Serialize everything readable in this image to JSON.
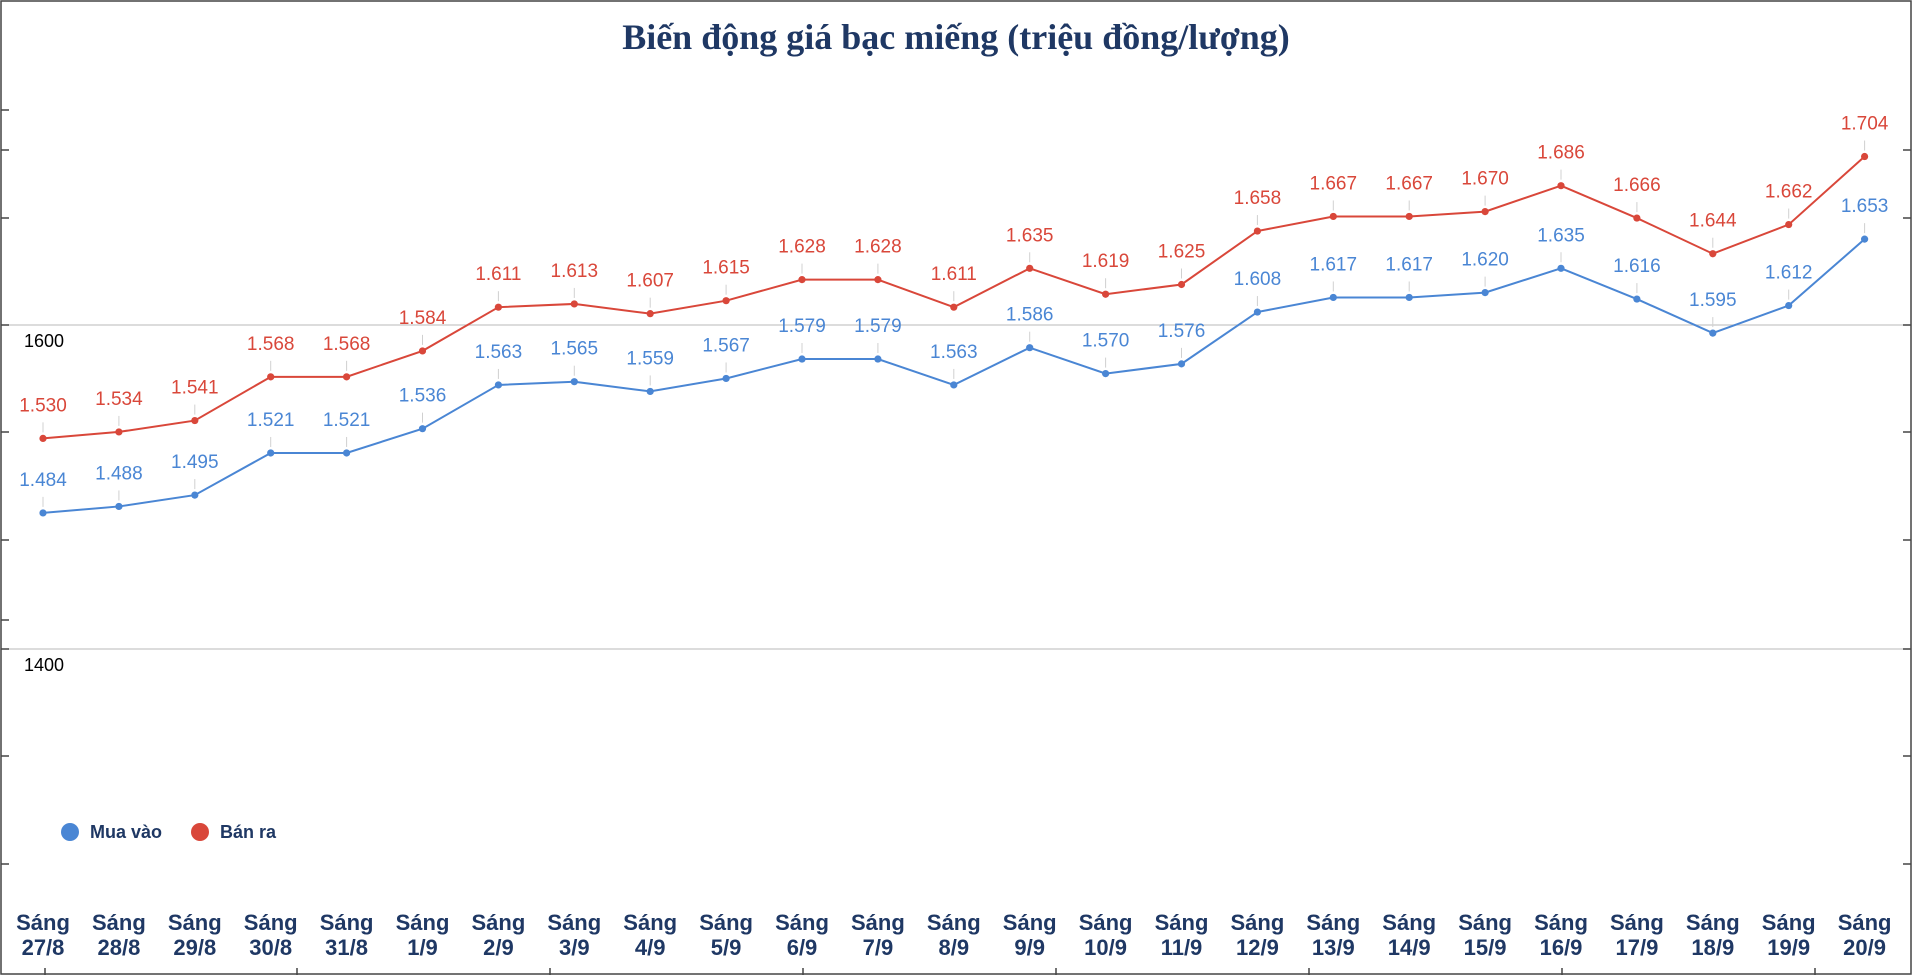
{
  "chart_data": {
    "type": "line",
    "title": "Biến động giá bạc miếng (triệu đồng/lượng)",
    "xlabel": "",
    "ylabel": "",
    "categories": [
      [
        "Sáng",
        "27/8"
      ],
      [
        "Sáng",
        "28/8"
      ],
      [
        "Sáng",
        "29/8"
      ],
      [
        "Sáng",
        "30/8"
      ],
      [
        "Sáng",
        "31/8"
      ],
      [
        "Sáng",
        "1/9"
      ],
      [
        "Sáng",
        "2/9"
      ],
      [
        "Sáng",
        "3/9"
      ],
      [
        "Sáng",
        "4/9"
      ],
      [
        "Sáng",
        "5/9"
      ],
      [
        "Sáng",
        "6/9"
      ],
      [
        "Sáng",
        "7/9"
      ],
      [
        "Sáng",
        "8/9"
      ],
      [
        "Sáng",
        "9/9"
      ],
      [
        "Sáng",
        "10/9"
      ],
      [
        "Sáng",
        "11/9"
      ],
      [
        "Sáng",
        "12/9"
      ],
      [
        "Sáng",
        "13/9"
      ],
      [
        "Sáng",
        "14/9"
      ],
      [
        "Sáng",
        "15/9"
      ],
      [
        "Sáng",
        "16/9"
      ],
      [
        "Sáng",
        "17/9"
      ],
      [
        "Sáng",
        "18/9"
      ],
      [
        "Sáng",
        "19/9"
      ],
      [
        "Sáng",
        "20/9"
      ]
    ],
    "series": [
      {
        "name": "Mua vào",
        "color": "#4a86d4",
        "values": [
          1484,
          1488,
          1495,
          1521,
          1521,
          1536,
          1563,
          1565,
          1559,
          1567,
          1579,
          1579,
          1563,
          1586,
          1570,
          1576,
          1608,
          1617,
          1617,
          1620,
          1635,
          1616,
          1595,
          1612,
          1653
        ],
        "labels": [
          "1.484",
          "1.488",
          "1.495",
          "1.521",
          "1.521",
          "1.536",
          "1.563",
          "1.565",
          "1.559",
          "1.567",
          "1.579",
          "1.579",
          "1.563",
          "1.586",
          "1.570",
          "1.576",
          "1.608",
          "1.617",
          "1.617",
          "1.620",
          "1.635",
          "1.616",
          "1.595",
          "1.612",
          "1.653"
        ]
      },
      {
        "name": "Bán ra",
        "color": "#d9473a",
        "values": [
          1530,
          1534,
          1541,
          1568,
          1568,
          1584,
          1611,
          1613,
          1607,
          1615,
          1628,
          1628,
          1611,
          1635,
          1619,
          1625,
          1658,
          1667,
          1667,
          1670,
          1686,
          1666,
          1644,
          1662,
          1704
        ],
        "labels": [
          "1.530",
          "1.534",
          "1.541",
          "1.568",
          "1.568",
          "1.584",
          "1.611",
          "1.613",
          "1.607",
          "1.615",
          "1.628",
          "1.628",
          "1.611",
          "1.635",
          "1.619",
          "1.625",
          "1.658",
          "1.667",
          "1.667",
          "1.670",
          "1.686",
          "1.666",
          "1.644",
          "1.662",
          "1.704"
        ]
      }
    ],
    "yticks": [
      "1400",
      "1600"
    ],
    "grid": true,
    "legend": "bottom-left"
  }
}
